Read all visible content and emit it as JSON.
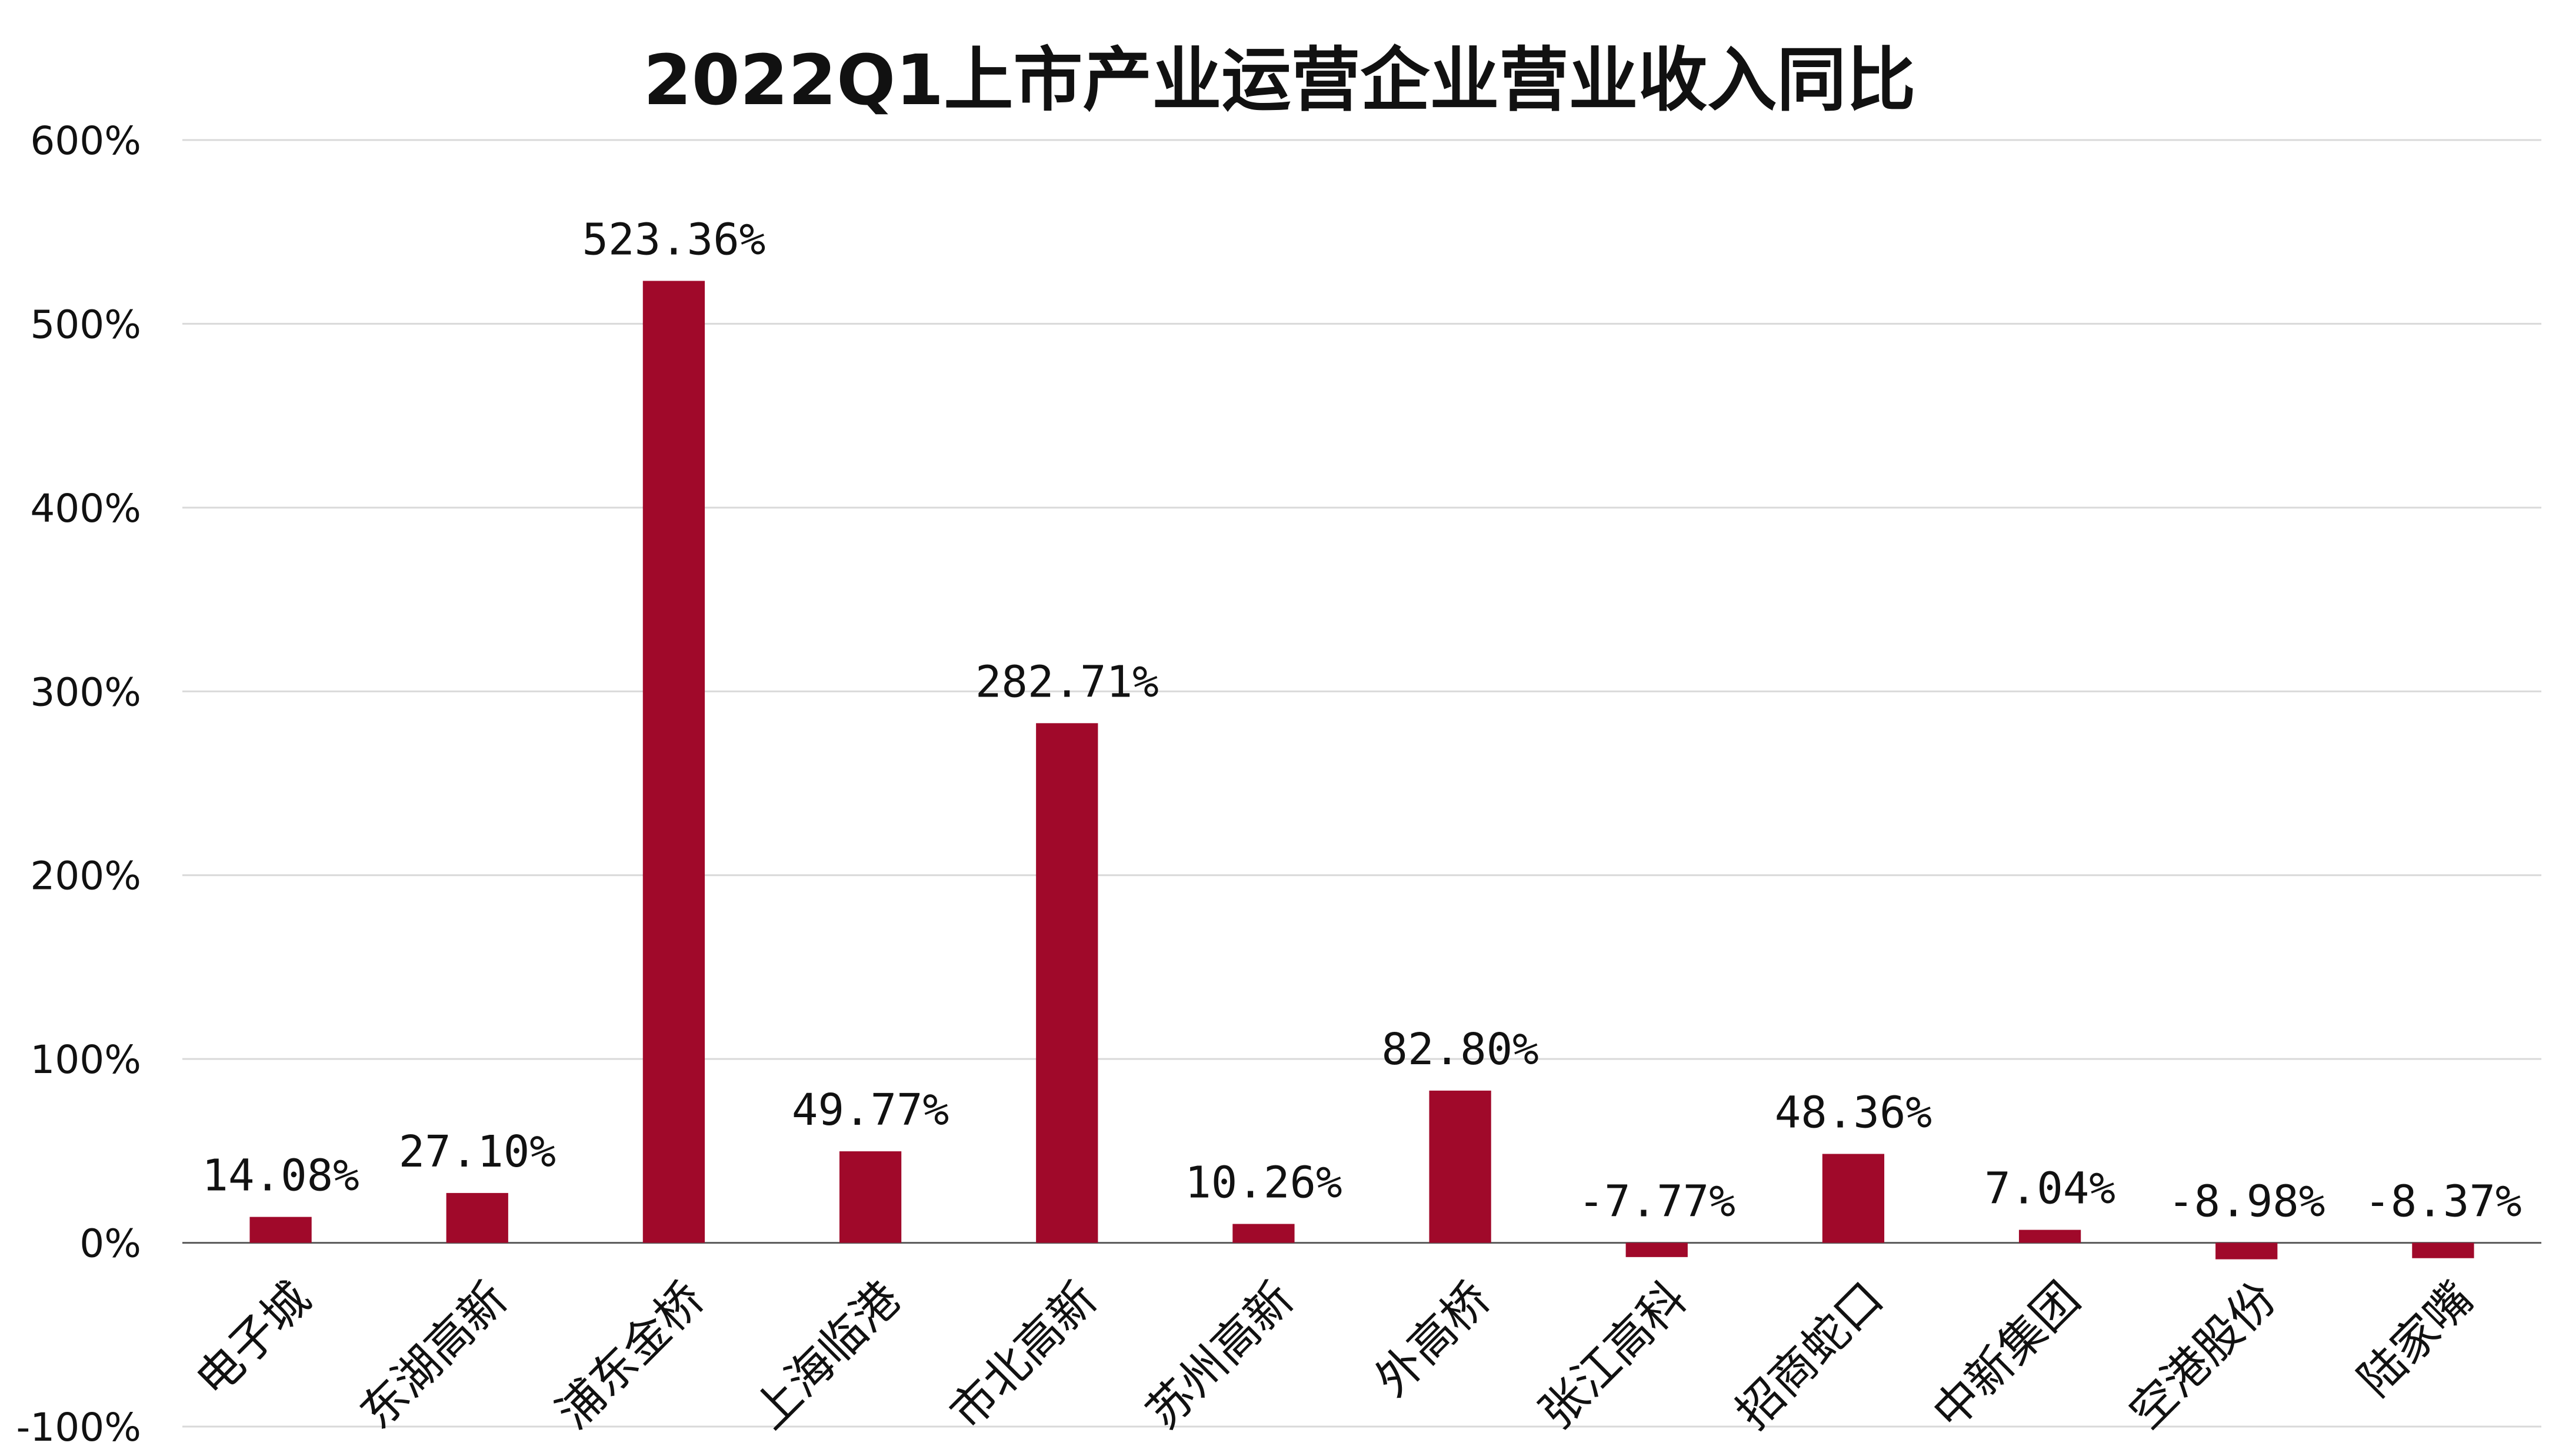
{
  "chart_data": {
    "type": "bar",
    "title": "2022Q1上市产业运营企业营业收入同比",
    "xlabel": "",
    "ylabel": "",
    "ylim": [
      -100,
      600
    ],
    "yticks": [
      -100,
      0,
      100,
      200,
      300,
      400,
      500,
      600
    ],
    "ytick_labels": [
      "-100%",
      "0%",
      "100%",
      "200%",
      "300%",
      "400%",
      "500%",
      "600%"
    ],
    "grid": true,
    "bar_color": "#A0092A",
    "categories": [
      "电子城",
      "东湖高新",
      "浦东金桥",
      "上海临港",
      "市北高新",
      "苏州高新",
      "外高桥",
      "张江高科",
      "招商蛇口",
      "中新集团",
      "空港股份",
      "陆家嘴"
    ],
    "values": [
      14.08,
      27.1,
      523.36,
      49.77,
      282.71,
      10.26,
      82.8,
      -7.77,
      48.36,
      7.04,
      -8.98,
      -8.37
    ],
    "data_labels": [
      "14.08%",
      "27.10%",
      "523.36%",
      "49.77%",
      "282.71%",
      "10.26%",
      "82.80%",
      "-7.77%",
      "48.36%",
      "7.04%",
      "-8.98%",
      "-8.37%"
    ]
  }
}
